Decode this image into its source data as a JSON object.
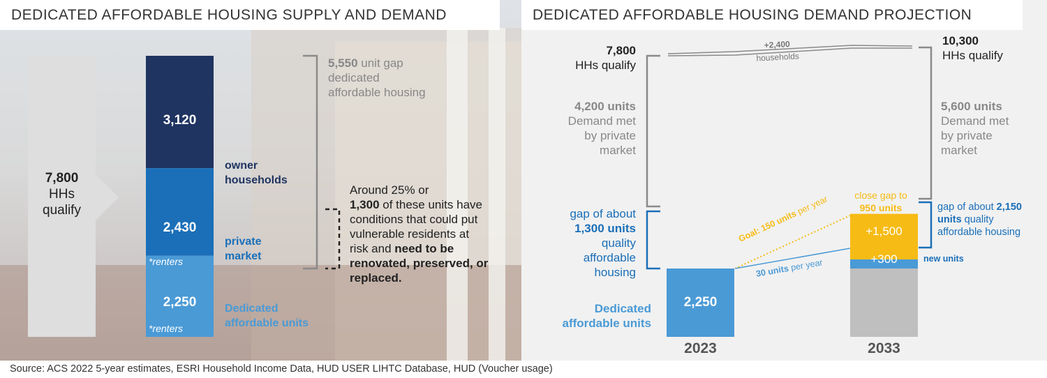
{
  "left": {
    "title": "DEDICATED AFFORDABLE HOUSING SUPPLY AND DEMAND",
    "qualify": {
      "num": "7,800",
      "l1": "HHs",
      "l2": "qualify"
    },
    "gap": {
      "num": "5,550",
      "unit": " unit gap",
      "l2": "dedicated",
      "l3": "affordable housing"
    },
    "owner": {
      "l1": "owner",
      "l2": "households"
    },
    "private": {
      "l1": "private",
      "l2": "market"
    },
    "dedicated": {
      "l1": "Dedicated",
      "l2": "affordable units"
    },
    "renters": "*renters",
    "note": {
      "l1": "Around 25% or",
      "l2_bold": "1,300",
      "l2_rest": " of these units have",
      "l3": "conditions that could put",
      "l4": "vulnerable residents at",
      "l5_pre": "risk and ",
      "l5_bold": "need to be",
      "l6": "renovated, preserved, or",
      "l7": "replaced."
    }
  },
  "right": {
    "title": "DEDICATED AFFORDABLE HOUSING DEMAND PROJECTION",
    "q2023": {
      "num": "7,800",
      "label": "HHs qualify"
    },
    "q2033": {
      "num": "10,300",
      "label": "HHs qualify"
    },
    "growth": {
      "num": "+2,400",
      "label": "households"
    },
    "pm2023": {
      "num": "4,200 units",
      "l1": "Demand met",
      "l2": "by private",
      "l3": "market"
    },
    "pm2033": {
      "num": "5,600 units",
      "l1": "Demand met",
      "l2": "by private",
      "l3": "market"
    },
    "gap2023": {
      "l1": "gap of about",
      "l2": "1,300 units",
      "l3": "quality",
      "l4": "affordable",
      "l5": "housing"
    },
    "gap2033": {
      "l1_pre": "gap of about ",
      "l1_bold": "2,150",
      "l2_bold": "units",
      "l2_rest": " quality",
      "l3": "affordable housing"
    },
    "close": {
      "l1": "close gap to",
      "l2": "950 units"
    },
    "goal": {
      "bold": "Goal: 150 units",
      "rest": " per year"
    },
    "trend": {
      "bold": "30 units",
      "rest": " per year"
    },
    "new_units": "new units",
    "dedicated": {
      "l1": "Dedicated",
      "l2": "affordable units"
    }
  },
  "chart_data": [
    {
      "type": "bar",
      "title": "DEDICATED AFFORDABLE HOUSING SUPPLY AND DEMAND",
      "stacked": true,
      "total": 7800,
      "categories": [
        "owner households",
        "private market",
        "Dedicated affordable units"
      ],
      "values": [
        3120,
        2430,
        2250
      ],
      "labels": [
        "3,120",
        "2,430",
        "2,250"
      ],
      "colors": [
        "#1f3461",
        "#1a6fb8",
        "#4a9ad6"
      ],
      "gap": 5550
    },
    {
      "type": "bar",
      "title": "DEDICATED AFFORDABLE HOUSING DEMAND PROJECTION",
      "stacked": true,
      "categories": [
        "2023",
        "2033"
      ],
      "ymax": 10300,
      "series": [
        {
          "name": "Dedicated affordable units",
          "values": [
            2250,
            2250
          ],
          "labels": [
            "2,250",
            ""
          ],
          "colors": [
            "#4a9ad6",
            "#bfbfbf"
          ]
        },
        {
          "name": "new units",
          "values": [
            0,
            300
          ],
          "labels": [
            "",
            "+300"
          ],
          "color": "#4a9ad6"
        },
        {
          "name": "close gap",
          "values": [
            0,
            1500
          ],
          "labels": [
            "",
            "+1,500"
          ],
          "color": "#f6bb15"
        }
      ],
      "qualify": [
        7800,
        10300
      ]
    }
  ],
  "footer": {
    "source": "Source: ACS 2022 5-year estimates, ESRI Household Income Data, HUD USER LIHTC Database, HUD (Voucher usage)"
  }
}
